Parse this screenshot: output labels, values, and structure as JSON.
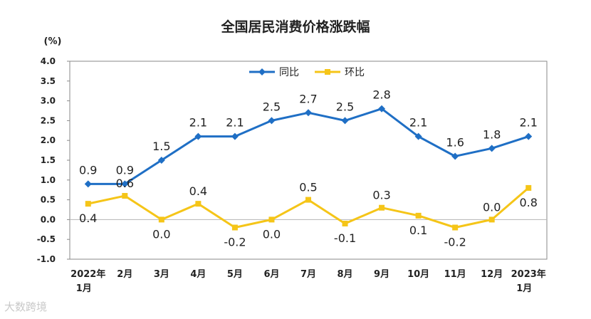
{
  "chart_data": {
    "type": "line",
    "title": "全国居民消费价格涨跌幅",
    "ylabel": "(%)",
    "xlabel": "",
    "ylim": [
      -1.0,
      4.0
    ],
    "yticks": [
      "4.0",
      "3.5",
      "3.0",
      "2.5",
      "2.0",
      "1.5",
      "1.0",
      "0.5",
      "0.0",
      "-0.5",
      "-1.0"
    ],
    "categories": [
      [
        "2022年",
        "1月"
      ],
      [
        "2月"
      ],
      [
        "3月"
      ],
      [
        "4月"
      ],
      [
        "5月"
      ],
      [
        "6月"
      ],
      [
        "7月"
      ],
      [
        "8月"
      ],
      [
        "9月"
      ],
      [
        "10月"
      ],
      [
        "11月"
      ],
      [
        "12月"
      ],
      [
        "2023年",
        "1月"
      ]
    ],
    "legend_position": "top-left",
    "series": [
      {
        "name": "同比",
        "color": "#1f6fc5",
        "values": [
          0.9,
          0.9,
          1.5,
          2.1,
          2.1,
          2.5,
          2.7,
          2.5,
          2.8,
          2.1,
          1.6,
          1.8,
          2.1
        ],
        "labels": [
          "0.9",
          "0.9",
          "1.5",
          "2.1",
          "2.1",
          "2.5",
          "2.7",
          "2.5",
          "2.8",
          "2.1",
          "1.6",
          "1.8",
          "2.1"
        ]
      },
      {
        "name": "环比",
        "color": "#f5c518",
        "values": [
          0.4,
          0.6,
          0.0,
          0.4,
          -0.2,
          0.0,
          0.5,
          -0.1,
          0.3,
          0.1,
          -0.2,
          0.0,
          0.8
        ],
        "labels": [
          "0.4",
          "0.6",
          "0.0",
          "0.4",
          "-0.2",
          "0.0",
          "0.5",
          "-0.1",
          "0.3",
          "0.1",
          "-0.2",
          "0.0",
          "0.8"
        ]
      }
    ]
  },
  "watermark": "大数跨境"
}
